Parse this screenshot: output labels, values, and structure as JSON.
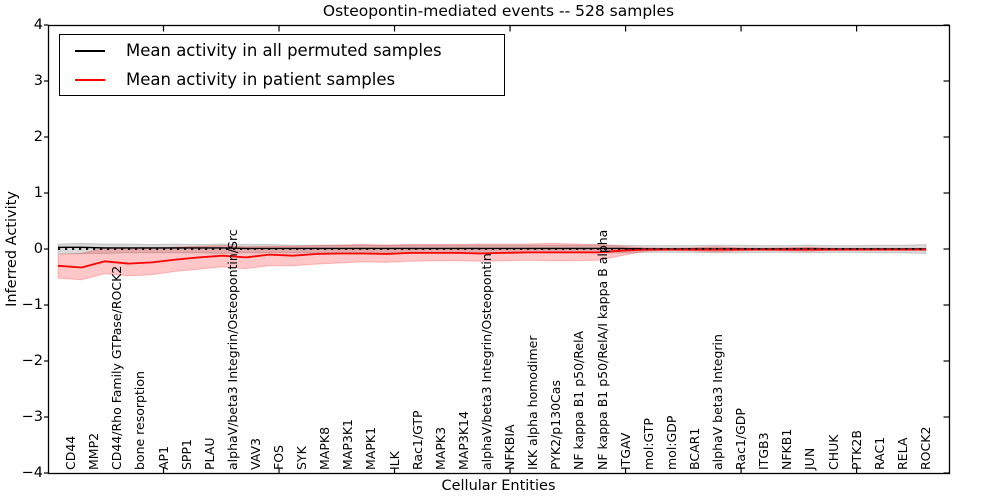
{
  "chart_data": {
    "type": "line",
    "title": "Osteopontin-mediated events -- 528 samples",
    "xlabel": "Cellular Entities",
    "ylabel": "Inferred Activity",
    "ylim": [
      -4,
      4
    ],
    "y_ticks": [
      "4",
      "3",
      "2",
      "1",
      "0",
      "−1",
      "−2",
      "−3",
      "−4"
    ],
    "x_major_tick_values": [
      5,
      10,
      15,
      20,
      25,
      30,
      35
    ],
    "grid": false,
    "legend_position": "upper left",
    "zero_reference_line": {
      "value": 0,
      "style": "dotted",
      "color": "#000000"
    },
    "categories": [
      "CD44",
      "MMP2",
      "CD44/Rho Family GTPase/ROCK2",
      "bone resorption",
      "AP1",
      "SPP1",
      "PLAU",
      "alphaV/beta3 Integrin/Osteopontin/Src",
      "VAV3",
      "FOS",
      "SYK",
      "MAPK8",
      "MAP3K1",
      "MAPK1",
      "ILK",
      "Rac1/GTP",
      "MAPK3",
      "MAP3K14",
      "alphaV/beta3 Integrin/Osteopontin",
      "NFKBIA",
      "IKK alpha homodimer",
      "PYK2/p130Cas",
      "NF kappa B1 p50/RelA",
      "NF kappa B1 p50/RelA/I kappa B alpha",
      "ITGAV",
      "mol:GTP",
      "mol:GDP",
      "BCAR1",
      "alphaV beta3 Integrin",
      "Rac1/GDP",
      "ITGB3",
      "NFKB1",
      "JUN",
      "CHUK",
      "PTK2B",
      "RAC1",
      "RELA",
      "ROCK2"
    ],
    "series": [
      {
        "name": "Mean activity in all permuted samples",
        "color": "#000000",
        "band_color": "rgba(0,0,0,0.15)",
        "values": [
          0.03,
          0.03,
          0.02,
          0.02,
          0.02,
          0.02,
          0.02,
          0.02,
          0.01,
          0.01,
          0.01,
          0.01,
          0.01,
          0.01,
          0.01,
          0.01,
          0.01,
          0.01,
          0.01,
          0.01,
          0.01,
          0.01,
          0.01,
          0.01,
          0.01,
          0,
          0,
          0,
          0,
          0,
          0,
          0,
          0,
          0,
          0,
          0,
          0,
          0
        ],
        "band_upper": [
          0.09,
          0.1,
          0.09,
          0.09,
          0.08,
          0.09,
          0.08,
          0.09,
          0.08,
          0.08,
          0.07,
          0.07,
          0.07,
          0.07,
          0.07,
          0.07,
          0.07,
          0.07,
          0.07,
          0.07,
          0.07,
          0.07,
          0.07,
          0.07,
          0.07,
          0.06,
          0.06,
          0.06,
          0.07,
          0.07,
          0.06,
          0.06,
          0.07,
          0.06,
          0.06,
          0.07,
          0.07,
          0.08
        ],
        "band_lower": [
          -0.08,
          -0.08,
          -0.08,
          -0.07,
          -0.07,
          -0.07,
          -0.07,
          -0.08,
          -0.07,
          -0.07,
          -0.07,
          -0.07,
          -0.07,
          -0.07,
          -0.07,
          -0.07,
          -0.07,
          -0.07,
          -0.07,
          -0.07,
          -0.07,
          -0.07,
          -0.07,
          -0.07,
          -0.07,
          -0.06,
          -0.06,
          -0.06,
          -0.07,
          -0.07,
          -0.06,
          -0.06,
          -0.07,
          -0.06,
          -0.06,
          -0.07,
          -0.07,
          -0.08
        ]
      },
      {
        "name": "Mean activity in patient samples",
        "color": "#ff0000",
        "band_color": "rgba(255,0,0,0.22)",
        "values": [
          -0.3,
          -0.33,
          -0.22,
          -0.26,
          -0.24,
          -0.19,
          -0.15,
          -0.12,
          -0.15,
          -0.1,
          -0.12,
          -0.09,
          -0.08,
          -0.08,
          -0.09,
          -0.07,
          -0.07,
          -0.07,
          -0.08,
          -0.07,
          -0.06,
          -0.06,
          -0.06,
          -0.06,
          -0.03,
          -0.01,
          -0.01,
          -0.01,
          -0.01,
          -0.01,
          -0.01,
          -0.01,
          -0.01,
          -0.01,
          -0.01,
          -0.01,
          -0.01,
          -0.01
        ],
        "band_upper": [
          -0.1,
          -0.08,
          0.02,
          0.0,
          0.01,
          0.03,
          0.05,
          0.06,
          0.04,
          0.05,
          0.05,
          0.06,
          0.07,
          0.08,
          0.07,
          0.08,
          0.08,
          0.08,
          0.09,
          0.09,
          0.09,
          0.1,
          0.09,
          0.08,
          0.05,
          0.02,
          0.01,
          0.02,
          0.04,
          0.02,
          0.01,
          0.02,
          0.03,
          0.01,
          0.01,
          0.01,
          0.01,
          0.01
        ],
        "band_lower": [
          -0.52,
          -0.55,
          -0.44,
          -0.48,
          -0.46,
          -0.4,
          -0.36,
          -0.32,
          -0.35,
          -0.3,
          -0.3,
          -0.27,
          -0.25,
          -0.23,
          -0.24,
          -0.22,
          -0.21,
          -0.21,
          -0.22,
          -0.21,
          -0.2,
          -0.21,
          -0.21,
          -0.2,
          -0.12,
          -0.04,
          -0.02,
          -0.03,
          -0.05,
          -0.03,
          -0.02,
          -0.03,
          -0.04,
          -0.02,
          -0.02,
          -0.02,
          -0.02,
          -0.02
        ]
      }
    ]
  }
}
